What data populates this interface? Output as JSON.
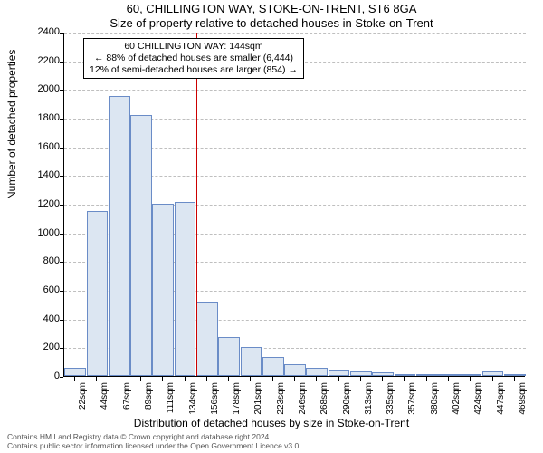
{
  "title_line1": "60, CHILLINGTON WAY, STOKE-ON-TRENT, ST6 8GA",
  "title_line2": "Size of property relative to detached houses in Stoke-on-Trent",
  "y_axis_label": "Number of detached properties",
  "x_axis_label": "Distribution of detached houses by size in Stoke-on-Trent",
  "chart": {
    "type": "histogram",
    "ylim": [
      0,
      2400
    ],
    "ytick_step": 200,
    "bar_fill": "#dce6f2",
    "bar_border": "#6a8cc7",
    "grid_color": "#bfbfbf",
    "refline_color": "#cc0000",
    "refline_category_index": 5,
    "categories": [
      "22sqm",
      "44sqm",
      "67sqm",
      "89sqm",
      "111sqm",
      "134sqm",
      "156sqm",
      "178sqm",
      "201sqm",
      "223sqm",
      "246sqm",
      "268sqm",
      "290sqm",
      "313sqm",
      "335sqm",
      "357sqm",
      "380sqm",
      "402sqm",
      "424sqm",
      "447sqm",
      "469sqm"
    ],
    "values": [
      60,
      1150,
      1950,
      1820,
      1200,
      1210,
      520,
      270,
      200,
      130,
      80,
      60,
      45,
      30,
      25,
      15,
      10,
      8,
      8,
      30,
      8
    ]
  },
  "annotation": {
    "line1": "60 CHILLINGTON WAY: 144sqm",
    "line2": "← 88% of detached houses are smaller (6,444)",
    "line3": "12% of semi-detached houses are larger (854) →"
  },
  "footer": {
    "line1": "Contains HM Land Registry data © Crown copyright and database right 2024.",
    "line2": "Contains public sector information licensed under the Open Government Licence v3.0."
  }
}
